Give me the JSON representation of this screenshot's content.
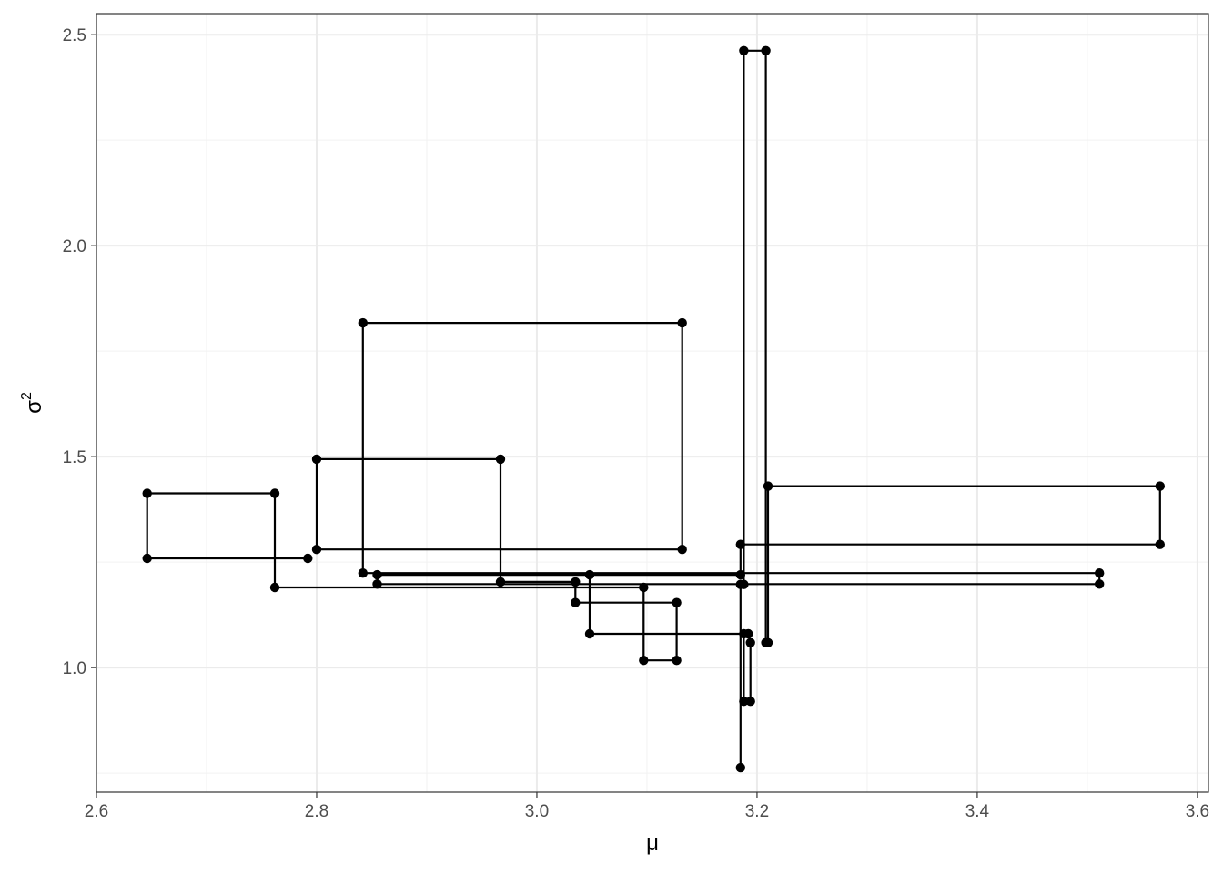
{
  "chart_data": {
    "type": "line",
    "xlabel": "μ",
    "ylabel_base": "σ",
    "ylabel_superscript": "2",
    "xlim": [
      2.6,
      3.61
    ],
    "ylim": [
      0.705,
      2.55
    ],
    "x_ticks": [
      2.6,
      2.8,
      3.0,
      3.2,
      3.4,
      3.6
    ],
    "x_tick_labels": [
      "2.6",
      "2.8",
      "3.0",
      "3.2",
      "3.4",
      "3.6"
    ],
    "y_ticks": [
      1.0,
      1.5,
      2.0,
      2.5
    ],
    "y_tick_labels": [
      "1.0",
      "1.5",
      "2.0",
      "2.5"
    ],
    "grid": true,
    "series": [
      {
        "color": "#000000",
        "x": [
          3.185,
          3.185,
          3.188,
          3.188,
          3.208,
          3.208,
          3.21,
          3.21,
          3.566,
          3.566,
          3.185,
          3.185,
          2.855,
          2.855,
          3.511,
          3.511,
          2.842,
          2.842,
          3.132,
          3.132,
          2.8,
          2.8,
          2.967,
          2.967,
          3.035,
          3.035,
          3.127,
          3.127,
          3.097,
          3.097,
          2.762,
          2.762,
          2.646,
          2.646,
          2.792
        ],
        "y": [
          0.763,
          1.197,
          1.197,
          2.462,
          2.462,
          1.059,
          1.059,
          1.43,
          1.43,
          1.292,
          1.292,
          1.22,
          1.22,
          1.198,
          1.198,
          1.224,
          1.224,
          1.817,
          1.817,
          1.28,
          1.28,
          1.494,
          1.494,
          1.203,
          1.203,
          1.154,
          1.154,
          1.017,
          1.017,
          1.19,
          1.19,
          1.413,
          1.413,
          1.259,
          1.259
        ]
      },
      {
        "color": "#000000",
        "x": [
          3.048,
          3.048,
          3.188,
          3.188,
          3.194,
          3.194,
          3.192
        ],
        "y": [
          1.22,
          1.08,
          1.08,
          0.92,
          0.92,
          1.059,
          1.08
        ]
      }
    ]
  }
}
